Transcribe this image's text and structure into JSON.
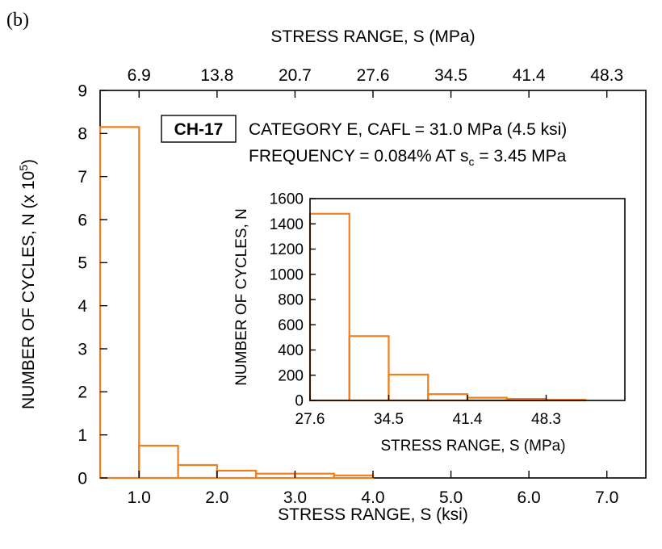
{
  "panel_label": "(b)",
  "annotation": {
    "specimen": "CH-17",
    "line1": "CATEGORY E, CAFL = 31.0 MPa (4.5 ksi)",
    "line2_prefix": "FREQUENCY = 0.084% AT s",
    "line2_sub": "c",
    "line2_suffix": " = 3.45 MPa"
  },
  "colors": {
    "bars": "#f07f1a",
    "axes": "#000000"
  },
  "chart_data": [
    {
      "id": "main",
      "type": "bar",
      "xlabel": "STRESS RANGE, S (ksi)",
      "ylabel_main": "NUMBER OF CYCLES, N (x 10",
      "ylabel_sup": "5",
      "ylabel_close": ")",
      "top_xlabel": "STRESS RANGE, S (MPa)",
      "xlim": [
        0.5,
        7.5
      ],
      "ylim": [
        0,
        9
      ],
      "bin_width": 0.5,
      "bins_start": [
        0.5,
        1.0,
        1.5,
        2.0,
        2.5,
        3.0,
        3.5
      ],
      "values": [
        8.15,
        0.75,
        0.3,
        0.17,
        0.1,
        0.1,
        0.06
      ],
      "x_ticks": [
        1.0,
        2.0,
        3.0,
        4.0,
        5.0,
        6.0,
        7.0
      ],
      "x_tick_labels": [
        "1.0",
        "2.0",
        "3.0",
        "4.0",
        "5.0",
        "6.0",
        "7.0"
      ],
      "y_ticks": [
        0,
        1,
        2,
        3,
        4,
        5,
        6,
        7,
        8,
        9
      ],
      "y_tick_labels": [
        "0",
        "1",
        "2",
        "3",
        "4",
        "5",
        "6",
        "7",
        "8",
        "9"
      ],
      "top_ticks": [
        1.0,
        2.0,
        3.0,
        4.0,
        5.0,
        6.0,
        7.0
      ],
      "top_tick_labels": [
        "6.9",
        "13.8",
        "20.7",
        "27.6",
        "34.5",
        "41.4",
        "48.3"
      ]
    },
    {
      "id": "inset",
      "type": "bar",
      "xlabel": "STRESS RANGE, S (MPa)",
      "ylabel": "NUMBER OF CYCLES, N",
      "xlim": [
        27.6,
        55.2
      ],
      "ylim": [
        0,
        1600
      ],
      "bin_width": 3.45,
      "bins_start": [
        27.6,
        31.05,
        34.5,
        37.95,
        41.4,
        44.85,
        48.3
      ],
      "values": [
        1480,
        510,
        205,
        50,
        22,
        12,
        5
      ],
      "x_ticks": [
        27.6,
        34.5,
        41.4,
        48.3
      ],
      "x_tick_labels": [
        "27.6",
        "34.5",
        "41.4",
        "48.3"
      ],
      "y_ticks": [
        0,
        200,
        400,
        600,
        800,
        1000,
        1200,
        1400,
        1600
      ],
      "y_tick_labels": [
        "0",
        "200",
        "400",
        "600",
        "800",
        "1000",
        "1200",
        "1400",
        "1600"
      ]
    }
  ]
}
